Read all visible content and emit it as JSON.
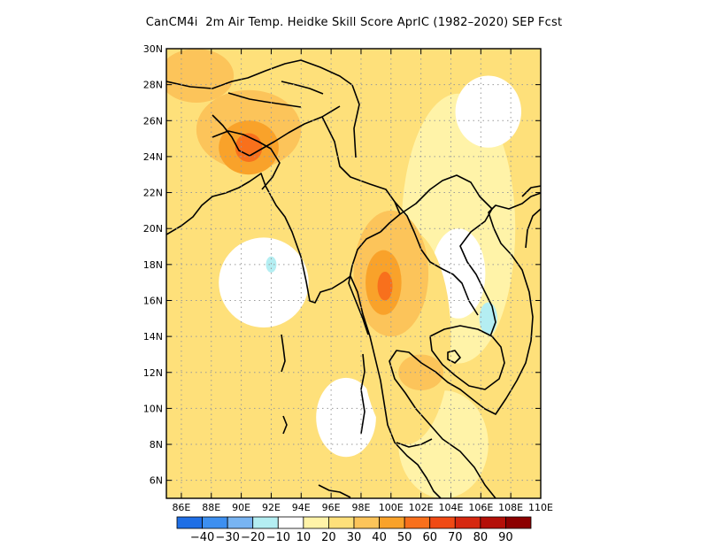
{
  "title": "CanCM4i  2m Air Temp. Heidke Skill Score AprIC (1982–2020) SEP Fcst",
  "map": {
    "region": "South-East Asia",
    "lon_range": [
      85,
      110
    ],
    "lat_range": [
      5,
      30
    ],
    "lat_ticks": [
      {
        "value": 30,
        "label": "30N"
      },
      {
        "value": 28,
        "label": "28N"
      },
      {
        "value": 26,
        "label": "26N"
      },
      {
        "value": 24,
        "label": "24N"
      },
      {
        "value": 22,
        "label": "22N"
      },
      {
        "value": 20,
        "label": "20N"
      },
      {
        "value": 18,
        "label": "18N"
      },
      {
        "value": 16,
        "label": "16N"
      },
      {
        "value": 14,
        "label": "14N"
      },
      {
        "value": 12,
        "label": "12N"
      },
      {
        "value": 10,
        "label": "10N"
      },
      {
        "value": 8,
        "label": "8N"
      },
      {
        "value": 6,
        "label": "6N"
      }
    ],
    "lon_ticks": [
      {
        "value": 86,
        "label": "86E"
      },
      {
        "value": 88,
        "label": "88E"
      },
      {
        "value": 90,
        "label": "90E"
      },
      {
        "value": 92,
        "label": "92E"
      },
      {
        "value": 94,
        "label": "94E"
      },
      {
        "value": 96,
        "label": "96E"
      },
      {
        "value": 98,
        "label": "98E"
      },
      {
        "value": 100,
        "label": "100E"
      },
      {
        "value": 102,
        "label": "102E"
      },
      {
        "value": 104,
        "label": "104E"
      },
      {
        "value": 106,
        "label": "106E"
      },
      {
        "value": 108,
        "label": "108E"
      },
      {
        "value": 110,
        "label": "110E"
      }
    ],
    "gridlines": true
  },
  "colorbar": {
    "labels": [
      "−40",
      "−30",
      "−20",
      "−10",
      "10",
      "20",
      "30",
      "40",
      "50",
      "60",
      "70",
      "80",
      "90"
    ],
    "colors": [
      "#1f6fe6",
      "#3d8ff0",
      "#78b4f2",
      "#b4eef2",
      "#ffffff",
      "#fff3a8",
      "#fee07a",
      "#fcc45a",
      "#f9a22a",
      "#f8701c",
      "#f04a14",
      "#d62810",
      "#b41008",
      "#8c0000"
    ]
  },
  "skill_regions": [
    {
      "level": "10-20",
      "color": "#fff3a8",
      "center_lon": 104.5,
      "center_lat": 20.0,
      "rx": 3.8,
      "ry": 7.5
    },
    {
      "level": "10-20",
      "color": "#fff3a8",
      "center_lon": 103.5,
      "center_lat": 8.0,
      "rx": 3.0,
      "ry": 3.0
    },
    {
      "level": "0-10",
      "color": "#ffffff",
      "center_lon": 91.5,
      "center_lat": 17.0,
      "rx": 3.0,
      "ry": 2.5
    },
    {
      "level": "0-10",
      "color": "#ffffff",
      "center_lon": 97.0,
      "center_lat": 9.5,
      "rx": 2.0,
      "ry": 2.2
    },
    {
      "level": "0-10",
      "color": "#ffffff",
      "center_lon": 104.5,
      "center_lat": 17.5,
      "rx": 1.8,
      "ry": 2.5
    },
    {
      "level": "0-10",
      "color": "#ffffff",
      "center_lon": 106.5,
      "center_lat": 26.5,
      "rx": 2.2,
      "ry": 2.0
    },
    {
      "level": "20-30",
      "color": "#fee07a",
      "center_lon": 87.0,
      "center_lat": 9.0,
      "rx": 2.5,
      "ry": 2.5
    },
    {
      "level": "20-30",
      "color": "#fee07a",
      "center_lon": 101.0,
      "center_lat": 14.0,
      "rx": 3.0,
      "ry": 6.0
    },
    {
      "level": "30-40",
      "color": "#fcc45a",
      "center_lon": 100.0,
      "center_lat": 17.5,
      "rx": 2.5,
      "ry": 3.5
    },
    {
      "level": "30-40",
      "color": "#fcc45a",
      "center_lon": 90.5,
      "center_lat": 25.5,
      "rx": 3.5,
      "ry": 2.2
    },
    {
      "level": "30-40",
      "color": "#fcc45a",
      "center_lon": 87.0,
      "center_lat": 28.5,
      "rx": 2.5,
      "ry": 1.5
    },
    {
      "level": "30-40",
      "color": "#fcc45a",
      "center_lon": 102.0,
      "center_lat": 12.0,
      "rx": 1.5,
      "ry": 1.0
    },
    {
      "level": "40-50",
      "color": "#f9a22a",
      "center_lon": 90.5,
      "center_lat": 24.5,
      "rx": 2.0,
      "ry": 1.5
    },
    {
      "level": "40-50",
      "color": "#f9a22a",
      "center_lon": 99.5,
      "center_lat": 17.0,
      "rx": 1.2,
      "ry": 1.8
    },
    {
      "level": "50-60",
      "color": "#f8701c",
      "center_lon": 90.5,
      "center_lat": 24.5,
      "rx": 0.9,
      "ry": 0.8
    },
    {
      "level": "50-60",
      "color": "#f8701c",
      "center_lon": 99.6,
      "center_lat": 16.8,
      "rx": 0.5,
      "ry": 0.8
    },
    {
      "level": "-10-0",
      "color": "#b4eef2",
      "center_lon": 92.0,
      "center_lat": 18.0,
      "rx": 0.35,
      "ry": 0.45
    },
    {
      "level": "-10-0",
      "color": "#b4eef2",
      "center_lon": 106.5,
      "center_lat": 15.0,
      "rx": 0.6,
      "ry": 0.9
    }
  ]
}
